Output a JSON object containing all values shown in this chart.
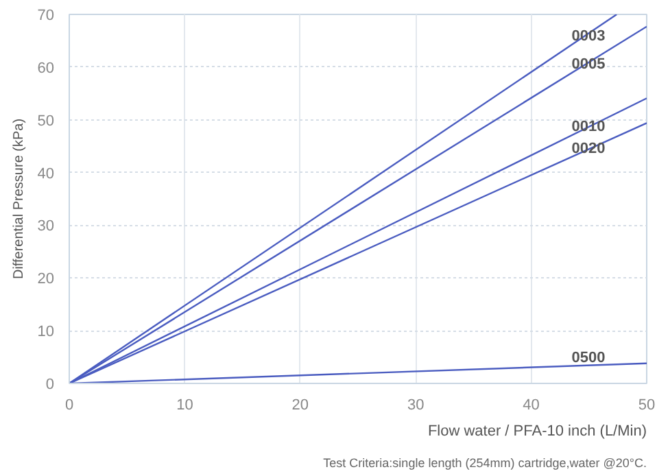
{
  "chart_data": {
    "type": "line",
    "xlabel": "Flow water / PFA-10 inch (L/Min)",
    "ylabel": "Differential Pressure (kPa)",
    "annotations": [
      "Test Criteria:single length (254mm) cartridge,water @20°C."
    ],
    "xlim": [
      0,
      50
    ],
    "ylim": [
      0,
      70
    ],
    "xticks": [
      0,
      10,
      20,
      30,
      40,
      50
    ],
    "yticks": [
      0,
      10,
      20,
      30,
      40,
      50,
      60,
      70
    ],
    "grid": true,
    "marker": "none",
    "line_style": "solid",
    "series": [
      {
        "name": "0003",
        "color": "#4a5cc0",
        "x": [
          0,
          47.4
        ],
        "values": [
          0,
          70
        ]
      },
      {
        "name": "0005",
        "color": "#4a5cc0",
        "x": [
          0,
          50
        ],
        "values": [
          0,
          67.7
        ]
      },
      {
        "name": "0010",
        "color": "#4a5cc0",
        "x": [
          0,
          50
        ],
        "values": [
          0,
          54.1
        ]
      },
      {
        "name": "0020",
        "color": "#4a5cc0",
        "x": [
          0,
          50
        ],
        "values": [
          0,
          49.4
        ]
      },
      {
        "name": "0500",
        "color": "#4a5cc0",
        "x": [
          0,
          50
        ],
        "values": [
          0,
          3.8
        ]
      }
    ]
  }
}
